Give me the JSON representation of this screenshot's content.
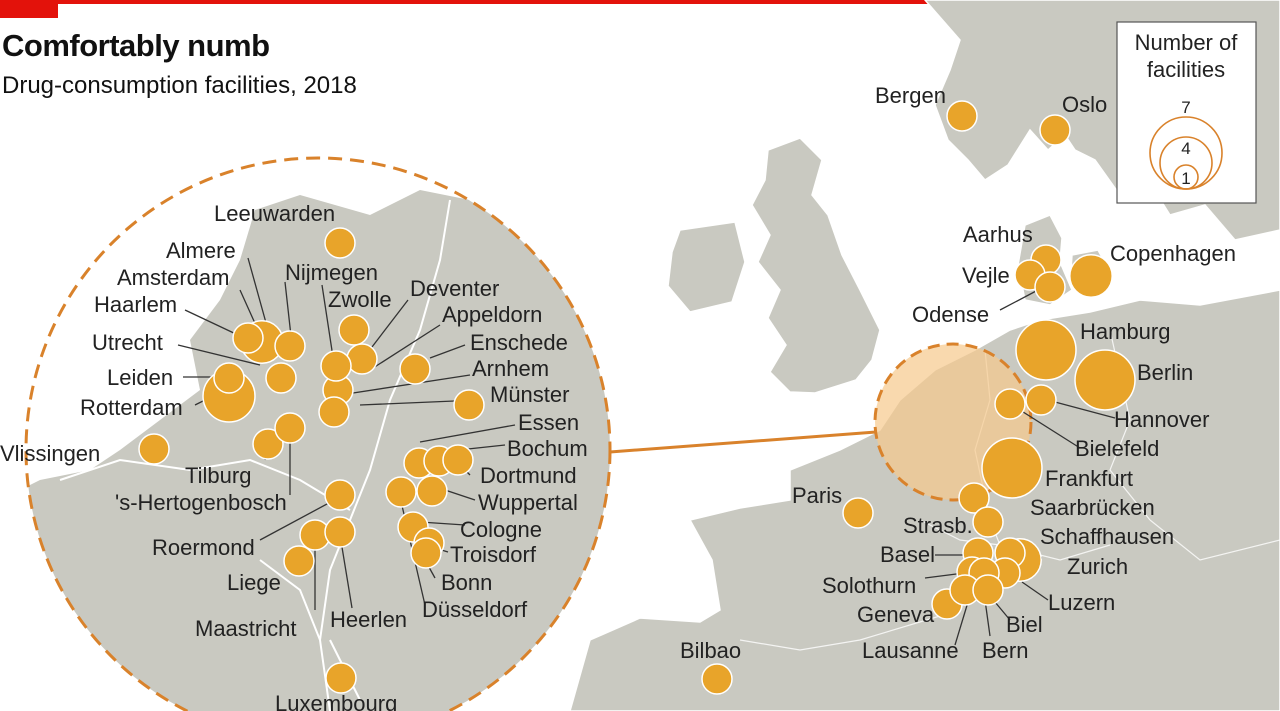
{
  "header": {
    "title": "Comfortably numb",
    "subtitle": "Drug-consumption facilities, 2018"
  },
  "legend": {
    "title_line1": "Number of",
    "title_line2": "facilities",
    "values": [
      "7",
      "4",
      "1"
    ]
  },
  "colors": {
    "accent": "#e3120b",
    "bubble": "#e8a42a",
    "bubble_stroke": "#ffffff",
    "land": "#c9c9c1",
    "sea": "#ffffff",
    "connector": "#d9822b"
  },
  "labels": {
    "bergen": "Bergen",
    "oslo": "Oslo",
    "aarhus": "Aarhus",
    "vejle": "Vejle",
    "odense": "Odense",
    "copenhagen": "Copenhagen",
    "hamburg": "Hamburg",
    "berlin": "Berlin",
    "hannover": "Hannover",
    "bielefeld": "Bielefeld",
    "frankfurt": "Frankfurt",
    "saarbrucken": "Saarbrücken",
    "paris": "Paris",
    "strasb": "Strasb.",
    "basel": "Basel",
    "schaffhausen": "Schaffhausen",
    "zurich": "Zurich",
    "solothurn": "Solothurn",
    "luzern": "Luzern",
    "geneva": "Geneva",
    "biel": "Biel",
    "lausanne": "Lausanne",
    "bern": "Bern",
    "bilbao": "Bilbao",
    "leeuwarden": "Leeuwarden",
    "almere": "Almere",
    "amsterdam": "Amsterdam",
    "nijmegen": "Nijmegen",
    "haarlem": "Haarlem",
    "zwolle": "Zwolle",
    "deventer": "Deventer",
    "appeldorn": "Appeldorn",
    "utrecht": "Utrecht",
    "enschede": "Enschede",
    "leiden": "Leiden",
    "arnhem": "Arnhem",
    "rotterdam": "Rotterdam",
    "munster": "Münster",
    "essen": "Essen",
    "vlissingen": "Vlissingen",
    "bochum": "Bochum",
    "tilburg": "Tilburg",
    "dortmund": "Dortmund",
    "hertogenbosch": "'s-Hertogenbosch",
    "wuppertal": "Wuppertal",
    "cologne": "Cologne",
    "roermond": "Roermond",
    "troisdorf": "Troisdorf",
    "liege": "Liege",
    "bonn": "Bonn",
    "maastricht": "Maastricht",
    "heerlen": "Heerlen",
    "dusseldorf": "Düsseldorf",
    "luxembourg": "Luxembourg"
  },
  "facilities": [
    {
      "city": "Bergen",
      "count": 1
    },
    {
      "city": "Oslo",
      "count": 1
    },
    {
      "city": "Aarhus",
      "count": 1
    },
    {
      "city": "Vejle",
      "count": 1
    },
    {
      "city": "Odense",
      "count": 1
    },
    {
      "city": "Copenhagen",
      "count": 2
    },
    {
      "city": "Hamburg",
      "count": 4
    },
    {
      "city": "Berlin",
      "count": 4
    },
    {
      "city": "Hannover",
      "count": 1
    },
    {
      "city": "Bielefeld",
      "count": 1
    },
    {
      "city": "Frankfurt",
      "count": 4
    },
    {
      "city": "Saarbrücken",
      "count": 1
    },
    {
      "city": "Paris",
      "count": 1
    },
    {
      "city": "Strasb.",
      "count": 1
    },
    {
      "city": "Basel",
      "count": 1
    },
    {
      "city": "Schaffhausen",
      "count": 1
    },
    {
      "city": "Zurich",
      "count": 2
    },
    {
      "city": "Solothurn",
      "count": 1
    },
    {
      "city": "Luzern",
      "count": 1
    },
    {
      "city": "Geneva",
      "count": 1
    },
    {
      "city": "Biel",
      "count": 1
    },
    {
      "city": "Lausanne",
      "count": 1
    },
    {
      "city": "Bern",
      "count": 1
    },
    {
      "city": "Bilbao",
      "count": 1
    },
    {
      "city": "Leeuwarden",
      "count": 1
    },
    {
      "city": "Almere",
      "count": 1
    },
    {
      "city": "Amsterdam",
      "count": 2
    },
    {
      "city": "Nijmegen",
      "count": 1
    },
    {
      "city": "Haarlem",
      "count": 1
    },
    {
      "city": "Zwolle",
      "count": 1
    },
    {
      "city": "Deventer",
      "count": 1
    },
    {
      "city": "Appeldorn",
      "count": 1
    },
    {
      "city": "Utrecht",
      "count": 1
    },
    {
      "city": "Enschede",
      "count": 1
    },
    {
      "city": "Leiden",
      "count": 1
    },
    {
      "city": "Arnhem",
      "count": 1
    },
    {
      "city": "Rotterdam",
      "count": 3
    },
    {
      "city": "Münster",
      "count": 1
    },
    {
      "city": "Essen",
      "count": 1
    },
    {
      "city": "Vlissingen",
      "count": 1
    },
    {
      "city": "Bochum",
      "count": 1
    },
    {
      "city": "Tilburg",
      "count": 1
    },
    {
      "city": "Dortmund",
      "count": 1
    },
    {
      "city": "'s-Hertogenbosch",
      "count": 1
    },
    {
      "city": "Wuppertal",
      "count": 1
    },
    {
      "city": "Cologne",
      "count": 1
    },
    {
      "city": "Roermond",
      "count": 1
    },
    {
      "city": "Troisdorf",
      "count": 1
    },
    {
      "city": "Liege",
      "count": 1
    },
    {
      "city": "Bonn",
      "count": 1
    },
    {
      "city": "Maastricht",
      "count": 1
    },
    {
      "city": "Heerlen",
      "count": 1
    },
    {
      "city": "Düsseldorf",
      "count": 1
    },
    {
      "city": "Luxembourg",
      "count": 1
    }
  ]
}
